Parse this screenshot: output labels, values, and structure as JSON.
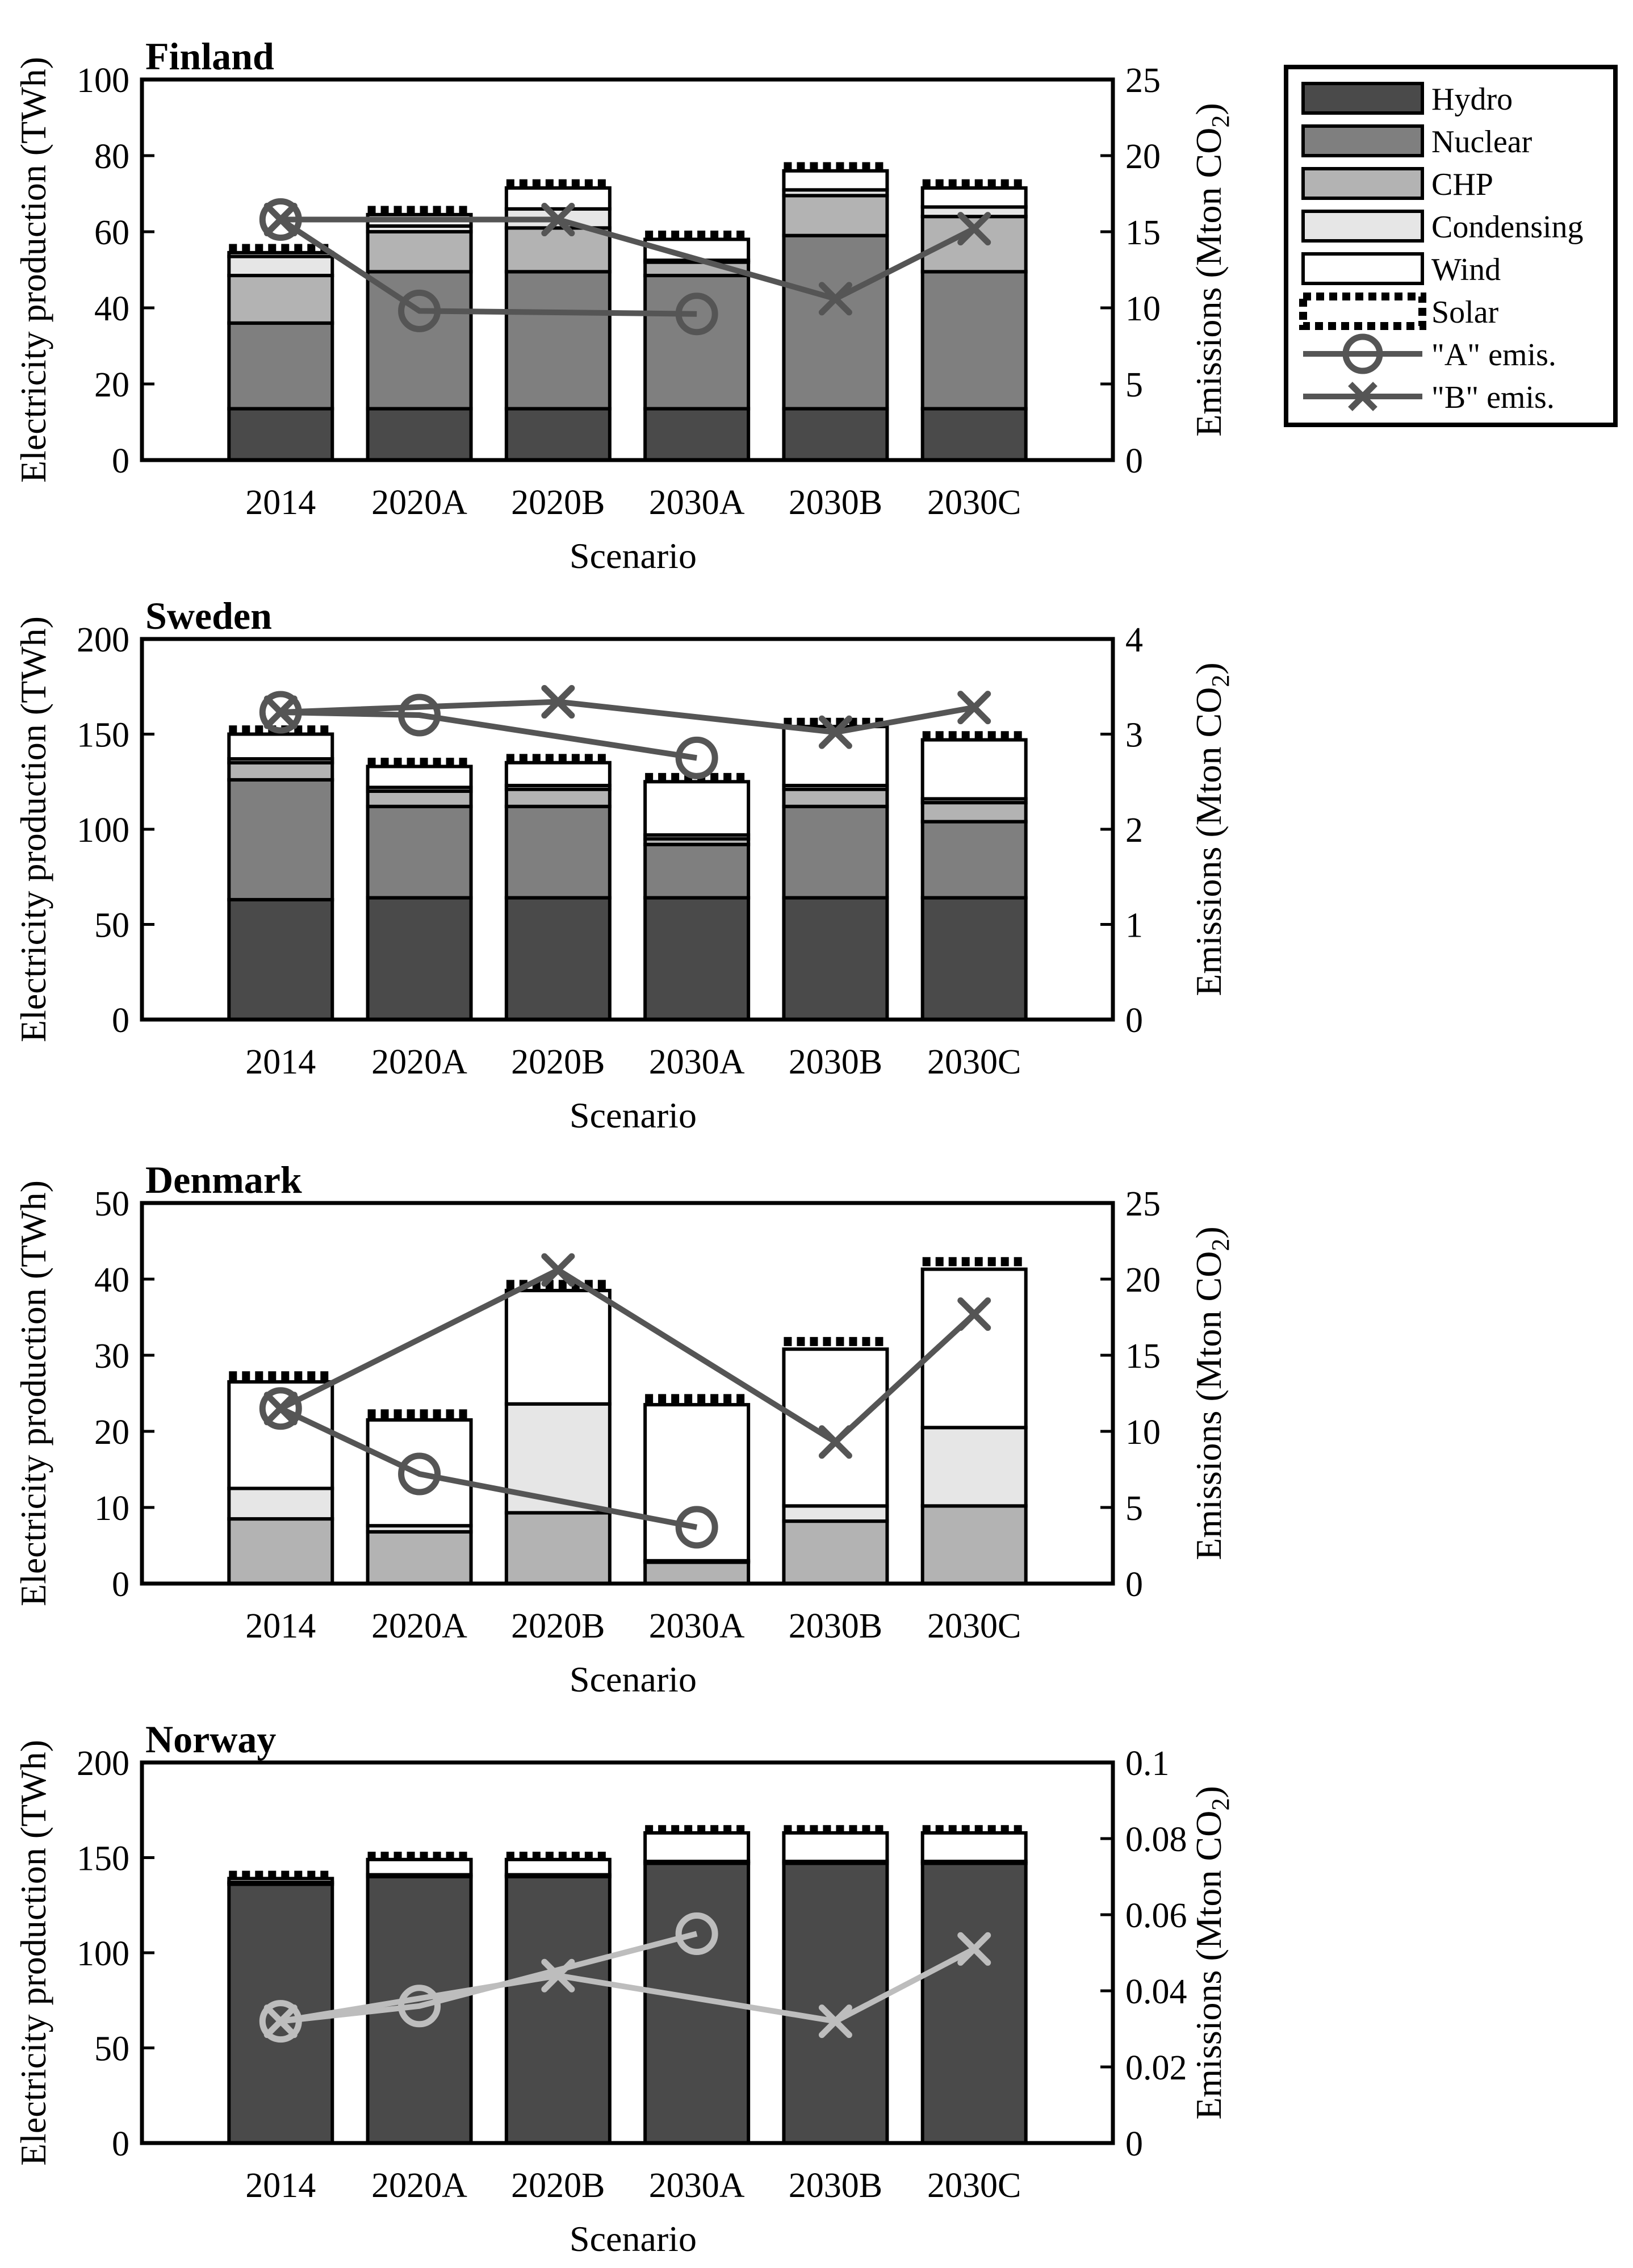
{
  "colors": {
    "hydro": "#4a4a4a",
    "nuclear": "#7f7f7f",
    "chp": "#b3b3b3",
    "condensing": "#e6e6e6",
    "wind": "#ffffff",
    "solar": "#000000",
    "emis_dark": "#555555",
    "emis_light": "#bdbdbd"
  },
  "legend": {
    "entries": [
      {
        "key": "hydro",
        "label": "Hydro",
        "kind": "patch"
      },
      {
        "key": "nuclear",
        "label": "Nuclear",
        "kind": "patch"
      },
      {
        "key": "chp",
        "label": "CHP",
        "kind": "patch"
      },
      {
        "key": "condensing",
        "label": "Condensing",
        "kind": "patch"
      },
      {
        "key": "wind",
        "label": "Wind",
        "kind": "patch"
      },
      {
        "key": "solar",
        "label": "Solar",
        "kind": "solar"
      },
      {
        "key": "a_emis",
        "label": "\"A\" emis.",
        "kind": "circle"
      },
      {
        "key": "b_emis",
        "label": "\"B\" emis.",
        "kind": "cross"
      }
    ]
  },
  "chart_data": [
    {
      "type": "bar",
      "title": "Finland",
      "categories": [
        "2014",
        "2020A",
        "2020B",
        "2030A",
        "2030B",
        "2030C"
      ],
      "xlabel": "Scenario",
      "ylabel": "Electricity production (TWh)",
      "y2label": "Emissions (Mton CO2)",
      "ylim": [
        0,
        100
      ],
      "yticks": [
        "0",
        "20",
        "40",
        "60",
        "80",
        "100"
      ],
      "y2lim": [
        0,
        25
      ],
      "y2ticks": [
        "0",
        "5",
        "10",
        "15",
        "20",
        "25"
      ],
      "series": [
        {
          "name": "Hydro",
          "key": "hydro",
          "values": [
            13.5,
            13.5,
            13.5,
            13.5,
            13.5,
            13.5
          ]
        },
        {
          "name": "Nuclear",
          "key": "nuclear",
          "values": [
            22.5,
            36,
            36,
            35,
            45.5,
            36
          ]
        },
        {
          "name": "CHP",
          "key": "chp",
          "values": [
            12.5,
            10.5,
            11.5,
            3.5,
            10.5,
            14.5
          ]
        },
        {
          "name": "Condensing",
          "key": "condensing",
          "values": [
            5,
            1.5,
            5,
            0.5,
            1.5,
            2.5
          ]
        },
        {
          "name": "Wind",
          "key": "wind",
          "values": [
            1,
            3,
            5.5,
            5.5,
            5,
            5
          ]
        },
        {
          "name": "Solar",
          "key": "solar",
          "values": [
            0.5,
            0.5,
            0.5,
            0.5,
            0.5,
            0.5
          ]
        }
      ],
      "emissions_color_key": "emis_dark",
      "emissions": [
        {
          "name": "\"A\" emis.",
          "marker": "circle",
          "values": [
            15.8,
            9.8,
            null,
            9.6,
            null,
            null
          ]
        },
        {
          "name": "\"B\" emis.",
          "marker": "cross",
          "values": [
            15.8,
            null,
            15.8,
            null,
            10.6,
            15.2
          ]
        }
      ]
    },
    {
      "type": "bar",
      "title": "Sweden",
      "categories": [
        "2014",
        "2020A",
        "2020B",
        "2030A",
        "2030B",
        "2030C"
      ],
      "xlabel": "Scenario",
      "ylabel": "Electricity production (TWh)",
      "y2label": "Emissions (Mton CO2)",
      "ylim": [
        0,
        200
      ],
      "yticks": [
        "0",
        "50",
        "100",
        "150",
        "200"
      ],
      "y2lim": [
        0,
        4
      ],
      "y2ticks": [
        "0",
        "1",
        "2",
        "3",
        "4"
      ],
      "series": [
        {
          "name": "Hydro",
          "key": "hydro",
          "values": [
            63,
            64,
            64,
            64,
            64,
            64
          ]
        },
        {
          "name": "Nuclear",
          "key": "nuclear",
          "values": [
            63,
            48,
            48,
            28,
            48,
            40
          ]
        },
        {
          "name": "CHP",
          "key": "chp",
          "values": [
            9,
            8,
            9,
            3,
            9,
            10
          ]
        },
        {
          "name": "Condensing",
          "key": "condensing",
          "values": [
            2,
            2,
            2,
            2,
            2,
            2
          ]
        },
        {
          "name": "Wind",
          "key": "wind",
          "values": [
            13,
            11,
            12,
            28,
            31,
            31
          ]
        },
        {
          "name": "Solar",
          "key": "solar",
          "values": [
            1,
            1,
            1,
            1,
            1,
            1
          ]
        }
      ],
      "emissions_color_key": "emis_dark",
      "emissions": [
        {
          "name": "\"A\" emis.",
          "marker": "circle",
          "values": [
            3.23,
            3.2,
            null,
            2.75,
            null,
            null
          ]
        },
        {
          "name": "\"B\" emis.",
          "marker": "cross",
          "values": [
            3.23,
            null,
            3.34,
            null,
            3.02,
            3.28
          ]
        }
      ]
    },
    {
      "type": "bar",
      "title": "Denmark",
      "categories": [
        "2014",
        "2020A",
        "2020B",
        "2030A",
        "2030B",
        "2030C"
      ],
      "xlabel": "Scenario",
      "ylabel": "Electricity production (TWh)",
      "y2label": "Emissions (Mton CO2)",
      "ylim": [
        0,
        50
      ],
      "yticks": [
        "0",
        "10",
        "20",
        "30",
        "40",
        "50"
      ],
      "y2lim": [
        0,
        25
      ],
      "y2ticks": [
        "0",
        "5",
        "10",
        "15",
        "20",
        "25"
      ],
      "series": [
        {
          "name": "Hydro",
          "key": "hydro",
          "values": [
            0,
            0,
            0,
            0,
            0,
            0
          ]
        },
        {
          "name": "Nuclear",
          "key": "nuclear",
          "values": [
            0,
            0,
            0,
            0,
            0,
            0
          ]
        },
        {
          "name": "CHP",
          "key": "chp",
          "values": [
            8.5,
            6.8,
            9.3,
            2.8,
            8.2,
            10.2
          ]
        },
        {
          "name": "Condensing",
          "key": "condensing",
          "values": [
            4,
            0.8,
            14.3,
            0.2,
            2,
            10.3
          ]
        },
        {
          "name": "Wind",
          "key": "wind",
          "values": [
            14,
            13.9,
            14.9,
            20.5,
            20.6,
            20.8
          ]
        },
        {
          "name": "Solar",
          "key": "solar",
          "values": [
            0.5,
            0.5,
            0.5,
            0.5,
            0.7,
            0.7
          ]
        }
      ],
      "emissions_color_key": "emis_dark",
      "emissions": [
        {
          "name": "\"A\" emis.",
          "marker": "circle",
          "values": [
            11.5,
            7.2,
            null,
            3.7,
            null,
            null
          ]
        },
        {
          "name": "\"B\" emis.",
          "marker": "cross",
          "values": [
            11.5,
            null,
            20.6,
            null,
            9.3,
            17.7
          ]
        }
      ]
    },
    {
      "type": "bar",
      "title": "Norway",
      "categories": [
        "2014",
        "2020A",
        "2020B",
        "2030A",
        "2030B",
        "2030C"
      ],
      "xlabel": "Scenario",
      "ylabel": "Electricity production (TWh)",
      "y2label": "Emissions (Mton CO2)",
      "ylim": [
        0,
        200
      ],
      "yticks": [
        "0",
        "50",
        "100",
        "150",
        "200"
      ],
      "y2lim": [
        0,
        0.1
      ],
      "y2ticks": [
        "0",
        "0.02",
        "0.04",
        "0.06",
        "0.08",
        "0.1"
      ],
      "series": [
        {
          "name": "Hydro",
          "key": "hydro",
          "values": [
            136,
            140,
            140,
            147,
            147,
            147
          ]
        },
        {
          "name": "Nuclear",
          "key": "nuclear",
          "values": [
            0,
            0,
            0,
            0,
            0,
            0
          ]
        },
        {
          "name": "CHP",
          "key": "chp",
          "values": [
            0,
            0,
            0,
            0,
            0,
            0
          ]
        },
        {
          "name": "Condensing",
          "key": "condensing",
          "values": [
            1,
            1,
            1,
            1,
            1,
            1
          ]
        },
        {
          "name": "Wind",
          "key": "wind",
          "values": [
            2,
            8,
            8,
            15,
            15,
            15
          ]
        },
        {
          "name": "Solar",
          "key": "solar",
          "values": [
            0.5,
            0.5,
            0.5,
            0.5,
            0.5,
            0.5
          ]
        }
      ],
      "emissions_color_key": "emis_light",
      "emissions": [
        {
          "name": "\"A\" emis.",
          "marker": "circle",
          "values": [
            0.032,
            0.036,
            null,
            0.055,
            null,
            null
          ]
        },
        {
          "name": "\"B\" emis.",
          "marker": "cross",
          "values": [
            0.032,
            null,
            0.044,
            null,
            0.032,
            0.051
          ]
        }
      ]
    }
  ]
}
